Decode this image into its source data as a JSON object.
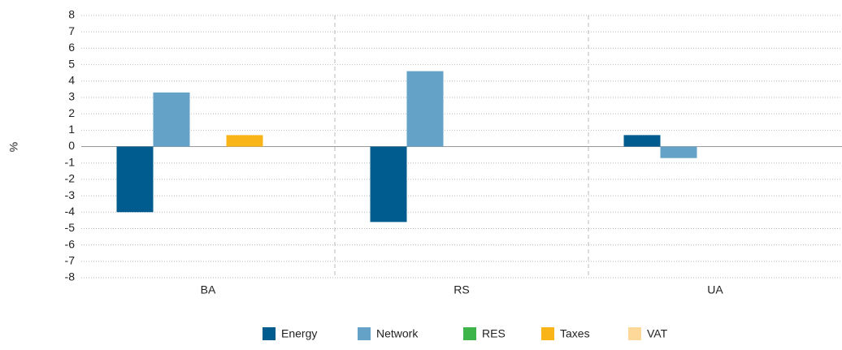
{
  "chart_data": {
    "type": "bar",
    "y_label": "%",
    "categories": [
      "BA",
      "RS",
      "UA"
    ],
    "series": [
      {
        "name": "Energy",
        "color": "#005b8e",
        "values": [
          -4,
          -4.6,
          0.7
        ]
      },
      {
        "name": "Network",
        "color": "#64a2c7",
        "values": [
          3.3,
          4.6,
          -0.7
        ]
      },
      {
        "name": "RES",
        "color": "#3db54a",
        "values": [
          0,
          0,
          0
        ]
      },
      {
        "name": "Taxes",
        "color": "#f9b417",
        "values": [
          0.7,
          0,
          0
        ]
      },
      {
        "name": "VAT",
        "color": "#fdd898",
        "values": [
          0,
          0,
          0
        ]
      }
    ],
    "ylim": [
      -8,
      8
    ],
    "yticks": [
      -8,
      -7,
      -6,
      -5,
      -4,
      -3,
      -2,
      -1,
      0,
      1,
      2,
      3,
      4,
      5,
      6,
      7,
      8
    ],
    "grid": true
  }
}
